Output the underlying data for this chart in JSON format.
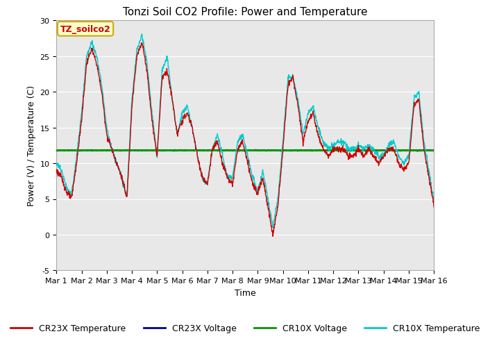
{
  "title": "Tonzi Soil CO2 Profile: Power and Temperature",
  "xlabel": "Time",
  "ylabel": "Power (V) / Temperature (C)",
  "ylim": [
    -5,
    30
  ],
  "xlim": [
    0,
    15
  ],
  "xtick_labels": [
    "Mar 1",
    "Mar 2",
    "Mar 3",
    "Mar 4",
    "Mar 5",
    "Mar 6",
    "Mar 7",
    "Mar 8",
    "Mar 9",
    "Mar 10",
    "Mar 11",
    "Mar 12",
    "Mar 13",
    "Mar 14",
    "Mar 15",
    "Mar 16"
  ],
  "xtick_positions": [
    0,
    1,
    2,
    3,
    4,
    5,
    6,
    7,
    8,
    9,
    10,
    11,
    12,
    13,
    14,
    15
  ],
  "ytick_positions": [
    -5,
    0,
    5,
    10,
    15,
    20,
    25,
    30
  ],
  "cr10x_voltage_value": 11.8,
  "cr23x_voltage_value": 11.8,
  "annotation_text": "TZ_soilco2",
  "color_cr23x_temp": "#cc0000",
  "color_cr23x_volt": "#000099",
  "color_cr10x_volt": "#009900",
  "color_cr10x_temp": "#00cccc",
  "legend_labels": [
    "CR23X Temperature",
    "CR23X Voltage",
    "CR10X Voltage",
    "CR10X Temperature"
  ],
  "plot_bg_color": "#e8e8e8",
  "fig_bg_color": "#ffffff",
  "title_fontsize": 11,
  "label_fontsize": 9,
  "tick_fontsize": 8,
  "legend_fontsize": 9
}
